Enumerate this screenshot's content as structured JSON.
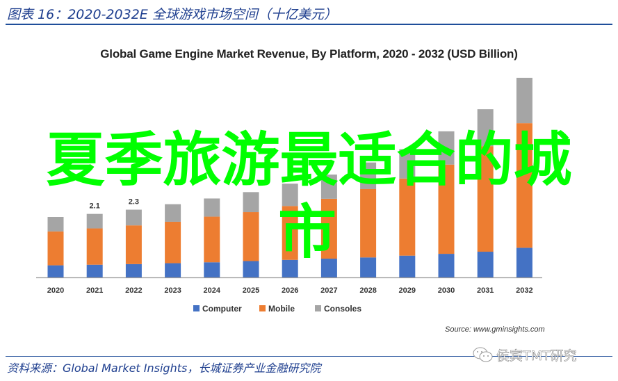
{
  "figure_title": "图表 16：2020-2032E 全球游戏市场空间（十亿美元）",
  "chart_data": {
    "type": "bar",
    "stacked": true,
    "title": "Global Game Engine Market Revenue, By Platform, 2020 - 2032 (USD Billion)",
    "xlabel": "",
    "ylabel": "",
    "ylim": [
      0,
      7
    ],
    "grid": false,
    "legend_position": "bottom",
    "categories": [
      "2020",
      "2021",
      "2022",
      "2023",
      "2024",
      "2025",
      "2026",
      "2027",
      "2028",
      "2029",
      "2030",
      "2031",
      "2032"
    ],
    "series": [
      {
        "name": "Computer",
        "color": "#4472c4",
        "values": [
          0.4,
          0.42,
          0.44,
          0.47,
          0.5,
          0.54,
          0.58,
          0.62,
          0.66,
          0.72,
          0.78,
          0.85,
          0.98
        ]
      },
      {
        "name": "Mobile",
        "color": "#ed7d31",
        "values": [
          1.12,
          1.2,
          1.28,
          1.37,
          1.51,
          1.62,
          1.78,
          1.98,
          2.26,
          2.55,
          2.95,
          3.49,
          4.12
        ]
      },
      {
        "name": "Consoles",
        "color": "#a5a5a5",
        "values": [
          0.48,
          0.48,
          0.52,
          0.58,
          0.6,
          0.66,
          0.74,
          0.8,
          0.88,
          0.97,
          1.1,
          1.22,
          1.5
        ]
      }
    ],
    "data_labels": [
      {
        "category": "2021",
        "text": "2.1"
      },
      {
        "category": "2022",
        "text": "2.3"
      }
    ]
  },
  "source_text": "Source: www.gminsights.com",
  "footer": "资料来源：Global Market Insights，长城证券产业金融研究院",
  "watermark": "侯宾TMT研究",
  "overlay_text": [
    "夏季旅游最适合的城",
    "市"
  ]
}
